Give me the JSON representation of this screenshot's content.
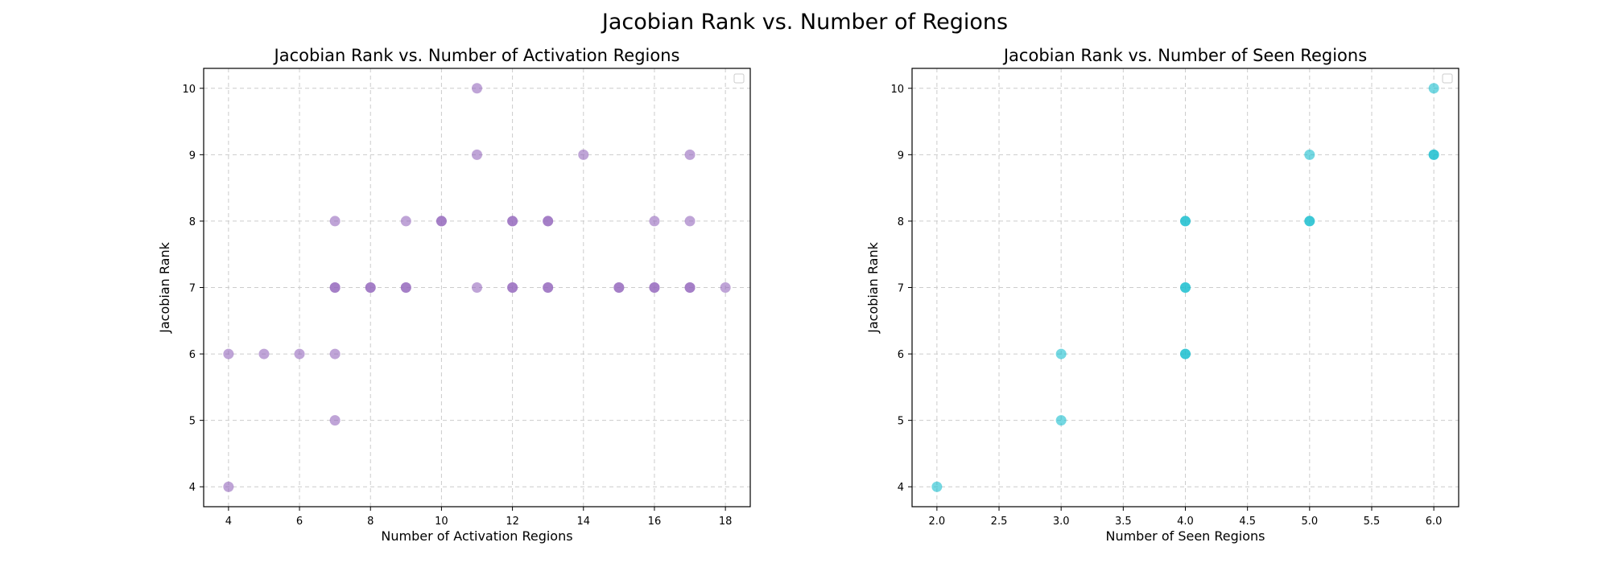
{
  "figure_title": "Jacobian Rank vs. Number of Regions",
  "chart_data": [
    {
      "type": "scatter",
      "title": "Jacobian Rank vs. Number of Activation Regions",
      "xlabel": "Number of Activation Regions",
      "ylabel": "Jacobian Rank",
      "xlim": [
        3.3,
        18.7
      ],
      "ylim": [
        3.7,
        10.3
      ],
      "xticks": [
        4,
        6,
        8,
        10,
        12,
        14,
        16,
        18
      ],
      "xtick_labels": [
        "4",
        "6",
        "8",
        "10",
        "12",
        "14",
        "16",
        "18"
      ],
      "yticks": [
        4,
        5,
        6,
        7,
        8,
        9,
        10
      ],
      "ytick_labels": [
        "4",
        "5",
        "6",
        "7",
        "8",
        "9",
        "10"
      ],
      "grid": true,
      "legend": "top-right (empty)",
      "color": "#9467bd",
      "points": [
        {
          "x": 4,
          "y": 4
        },
        {
          "x": 4,
          "y": 6
        },
        {
          "x": 5,
          "y": 6
        },
        {
          "x": 6,
          "y": 6
        },
        {
          "x": 7,
          "y": 5
        },
        {
          "x": 7,
          "y": 6
        },
        {
          "x": 7,
          "y": 7
        },
        {
          "x": 7,
          "y": 7
        },
        {
          "x": 7,
          "y": 8
        },
        {
          "x": 8,
          "y": 7
        },
        {
          "x": 8,
          "y": 7
        },
        {
          "x": 9,
          "y": 7
        },
        {
          "x": 9,
          "y": 7
        },
        {
          "x": 9,
          "y": 8
        },
        {
          "x": 10,
          "y": 8
        },
        {
          "x": 10,
          "y": 8
        },
        {
          "x": 11,
          "y": 7
        },
        {
          "x": 11,
          "y": 9
        },
        {
          "x": 11,
          "y": 10
        },
        {
          "x": 12,
          "y": 7
        },
        {
          "x": 12,
          "y": 7
        },
        {
          "x": 12,
          "y": 8
        },
        {
          "x": 12,
          "y": 8
        },
        {
          "x": 13,
          "y": 7
        },
        {
          "x": 13,
          "y": 7
        },
        {
          "x": 13,
          "y": 8
        },
        {
          "x": 13,
          "y": 8
        },
        {
          "x": 14,
          "y": 9
        },
        {
          "x": 15,
          "y": 7
        },
        {
          "x": 15,
          "y": 7
        },
        {
          "x": 16,
          "y": 7
        },
        {
          "x": 16,
          "y": 7
        },
        {
          "x": 16,
          "y": 8
        },
        {
          "x": 17,
          "y": 7
        },
        {
          "x": 17,
          "y": 7
        },
        {
          "x": 17,
          "y": 8
        },
        {
          "x": 17,
          "y": 9
        },
        {
          "x": 18,
          "y": 7
        }
      ]
    },
    {
      "type": "scatter",
      "title": "Jacobian Rank vs. Number of Seen Regions",
      "xlabel": "Number of Seen Regions",
      "ylabel": "Jacobian Rank",
      "xlim": [
        1.8,
        6.2
      ],
      "ylim": [
        3.7,
        10.3
      ],
      "xticks": [
        2.0,
        2.5,
        3.0,
        3.5,
        4.0,
        4.5,
        5.0,
        5.5,
        6.0
      ],
      "xtick_labels": [
        "2.0",
        "2.5",
        "3.0",
        "3.5",
        "4.0",
        "4.5",
        "5.0",
        "5.5",
        "6.0"
      ],
      "yticks": [
        4,
        5,
        6,
        7,
        8,
        9,
        10
      ],
      "ytick_labels": [
        "4",
        "5",
        "6",
        "7",
        "8",
        "9",
        "10"
      ],
      "grid": true,
      "legend": "top-right (empty)",
      "color": "#17becf",
      "points": [
        {
          "x": 2,
          "y": 4
        },
        {
          "x": 3,
          "y": 5
        },
        {
          "x": 3,
          "y": 6
        },
        {
          "x": 4,
          "y": 6
        },
        {
          "x": 4,
          "y": 6
        },
        {
          "x": 4,
          "y": 7
        },
        {
          "x": 4,
          "y": 7
        },
        {
          "x": 4,
          "y": 8
        },
        {
          "x": 4,
          "y": 8
        },
        {
          "x": 5,
          "y": 8
        },
        {
          "x": 5,
          "y": 8
        },
        {
          "x": 5,
          "y": 9
        },
        {
          "x": 6,
          "y": 9
        },
        {
          "x": 6,
          "y": 9
        },
        {
          "x": 6,
          "y": 10
        }
      ]
    }
  ]
}
